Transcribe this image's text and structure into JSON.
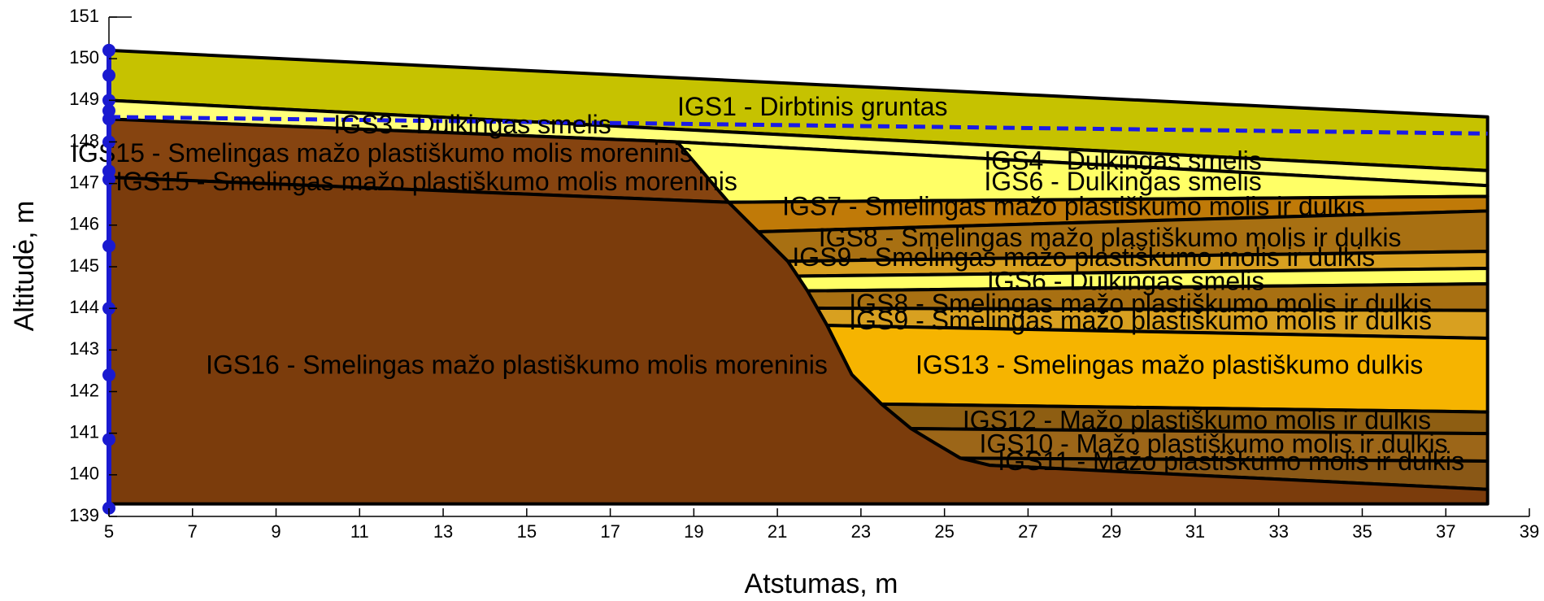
{
  "chart_data": {
    "type": "cross-section",
    "xlabel": "Atstumas, m",
    "ylabel": "Altitudė, m",
    "xlim": [
      5,
      39
    ],
    "ylim": [
      139,
      151
    ],
    "xticks": [
      5,
      7,
      9,
      11,
      13,
      15,
      17,
      19,
      21,
      23,
      25,
      27,
      29,
      31,
      33,
      35,
      37,
      39
    ],
    "yticks": [
      139,
      140,
      141,
      142,
      143,
      144,
      145,
      146,
      147,
      148,
      149,
      150,
      151
    ],
    "layers": [
      {
        "color": "#c6c200",
        "x": [
          5,
          38,
          38,
          5
        ],
        "y": [
          150.2,
          148.6,
          147.31,
          149.0
        ]
      },
      {
        "color": "#ffff7a",
        "x": [
          5,
          38,
          38,
          18.6,
          5
        ],
        "y": [
          149.0,
          147.31,
          146.95,
          148.0,
          148.55
        ]
      },
      {
        "color": "#ffff66",
        "x": [
          18.6,
          38,
          38,
          19.83
        ],
        "y": [
          148.0,
          146.95,
          146.69,
          146.55
        ]
      },
      {
        "color": "#c07a08",
        "x": [
          19.83,
          38,
          38,
          20.54
        ],
        "y": [
          146.55,
          146.69,
          146.34,
          145.84
        ]
      },
      {
        "color": "#a87012",
        "x": [
          20.54,
          38,
          38,
          21.25
        ],
        "y": [
          145.84,
          146.34,
          145.37,
          145.13
        ]
      },
      {
        "color": "#d8a020",
        "x": [
          21.25,
          38,
          38,
          21.485
        ],
        "y": [
          145.13,
          145.37,
          144.96,
          144.775
        ]
      },
      {
        "color": "#ffff66",
        "x": [
          21.485,
          38,
          38,
          21.72
        ],
        "y": [
          144.775,
          144.96,
          144.59,
          144.42
        ]
      },
      {
        "color": "#a87012",
        "x": [
          21.72,
          38,
          38,
          21.955
        ],
        "y": [
          144.42,
          144.59,
          143.95,
          144.005
        ]
      },
      {
        "color": "#d8a020",
        "x": [
          21.955,
          38,
          38,
          22.19
        ],
        "y": [
          144.005,
          143.95,
          143.28,
          143.59
        ]
      },
      {
        "color": "#f6b400",
        "x": [
          22.19,
          38,
          38,
          23.49,
          22.78
        ],
        "y": [
          143.59,
          143.28,
          141.51,
          141.7,
          142.41
        ]
      },
      {
        "color": "#8e5e12",
        "x": [
          23.49,
          38,
          38,
          24.2
        ],
        "y": [
          141.7,
          141.51,
          140.99,
          141.11
        ]
      },
      {
        "color": "#9c6618",
        "x": [
          24.2,
          38,
          38,
          25.38,
          24.79
        ],
        "y": [
          141.11,
          140.99,
          140.33,
          140.4,
          140.75
        ]
      },
      {
        "color": "#8a5816",
        "x": [
          25.38,
          38,
          38,
          26.08
        ],
        "y": [
          140.4,
          140.33,
          139.65,
          140.23
        ]
      },
      {
        "color": "#864410",
        "x": [
          5,
          18.6,
          19.83,
          5
        ],
        "y": [
          148.55,
          148.0,
          146.55,
          147.15
        ]
      },
      {
        "color": "#7b3c0c",
        "x": [
          5,
          19.83,
          20.54,
          21.25,
          21.485,
          21.72,
          21.955,
          22.19,
          22.78,
          23.49,
          24.2,
          24.79,
          25.38,
          26.08,
          38,
          38,
          5
        ],
        "y": [
          147.15,
          146.55,
          145.84,
          145.13,
          144.775,
          144.42,
          144.005,
          143.59,
          142.41,
          141.7,
          141.11,
          140.75,
          140.4,
          140.23,
          139.65,
          139.3,
          139.3
        ]
      }
    ],
    "annotations": [
      "IGS1 - Dirbtinis gruntas",
      "IGS3 - Dulkingas smelis",
      "IGS15 - Smelingas mažo plastiškumo molis moreninis",
      "IGS15 - Smelingas mažo plastiškumo molis moreninis",
      "IGS4 - Dulkingas smelis",
      "IGS6 - Dulkingas smelis",
      "IGS7 - Smelingas mažo plastiškumo molis ir dulkis",
      "IGS8 - Smelingas mažo plastiškumo molis ir dulkis",
      "IGS9 - Smelingas mažo plastiškumo molis ir dulkis",
      "IGS6 - Dulkingas smelis",
      "IGS8 - Smelingas mažo plastiškumo molis ir dulkis",
      "IGS9 - Smelingas mažo plastiškumo molis ir dulkis",
      "IGS16 - Smelingas mažo plastiškumo molis moreninis",
      "IGS13 - Smelingas mažo plastiškumo dulkis",
      "IGS12 - Mažo plastiškumo molis ir dulkis",
      "IGS10 - Mažo plastiškumo molis ir dulkis",
      "IGS11 - Mažo plastiškumo molis ir dulkis"
    ],
    "water_table": {
      "color": "#1a1ae6",
      "x": [
        5,
        38
      ],
      "y": [
        148.6,
        148.2
      ]
    },
    "borehole": {
      "color": "#1a1ad0",
      "x": 5,
      "y": [
        150.2,
        149.6,
        149.0,
        148.75,
        148.55,
        148.0,
        147.3,
        147.1,
        145.5,
        144.0,
        142.4,
        140.85,
        139.2
      ]
    }
  }
}
